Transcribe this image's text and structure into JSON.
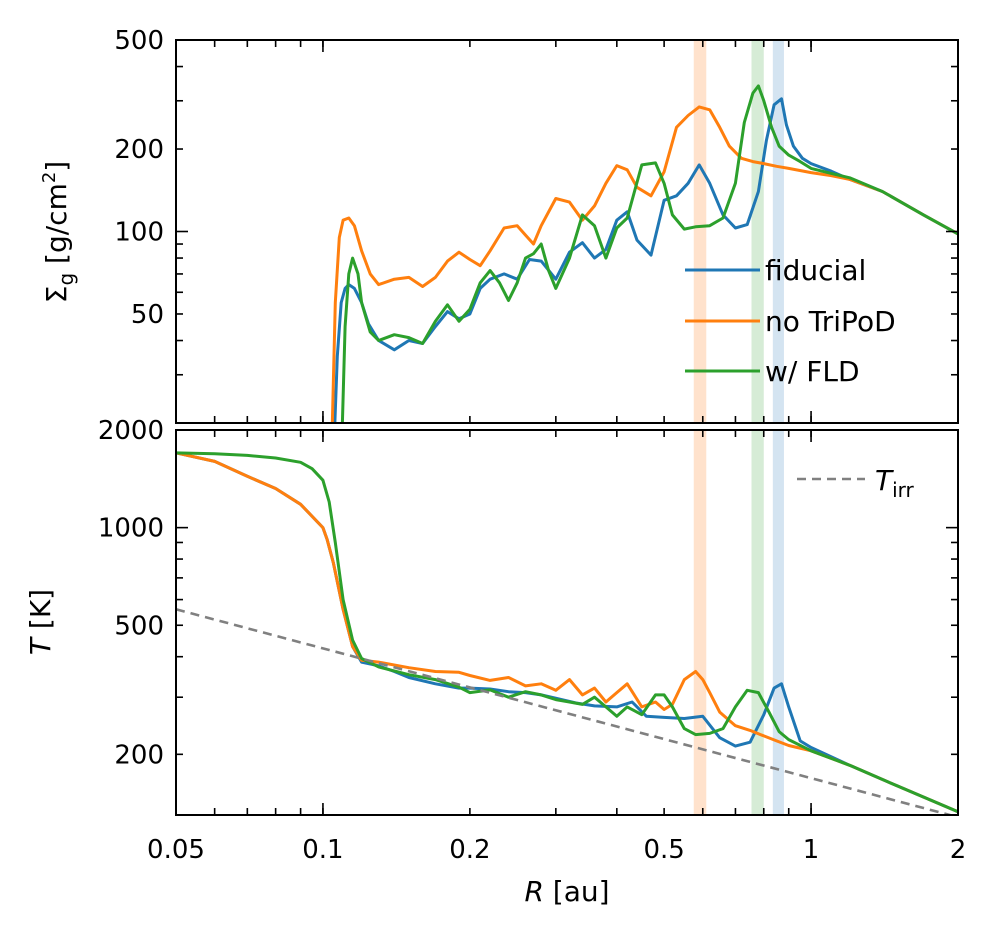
{
  "chart_data": [
    {
      "type": "line",
      "panel": "top",
      "ylabel": "Σg [g/cm2]",
      "ylabel_parts": {
        "symbol": "Σ",
        "sub": "g",
        "unit_pre": " [g/cm",
        "sup": "2",
        "unit_post": "]"
      },
      "xscale": "log",
      "yscale": "log",
      "xlim": [
        0.05,
        2
      ],
      "ylim": [
        20,
        500
      ],
      "yticks": [
        {
          "v": 50,
          "label": "50"
        },
        {
          "v": 100,
          "label": "100"
        },
        {
          "v": 200,
          "label": "200"
        },
        {
          "v": 500,
          "label": "500"
        }
      ],
      "bands": [
        {
          "x0": 0.575,
          "x1": 0.61,
          "color": "#ffe2cc"
        },
        {
          "x0": 0.755,
          "x1": 0.8,
          "color": "#d6ecd6"
        },
        {
          "x0": 0.835,
          "x1": 0.88,
          "color": "#d4e4f1"
        }
      ],
      "series": [
        {
          "name": "fiducial",
          "color": "#1f77b4",
          "x": [
            0.105,
            0.107,
            0.109,
            0.111,
            0.113,
            0.116,
            0.12,
            0.124,
            0.13,
            0.14,
            0.15,
            0.16,
            0.17,
            0.18,
            0.19,
            0.2,
            0.21,
            0.22,
            0.235,
            0.25,
            0.265,
            0.28,
            0.3,
            0.32,
            0.34,
            0.36,
            0.38,
            0.4,
            0.42,
            0.44,
            0.47,
            0.5,
            0.53,
            0.56,
            0.59,
            0.62,
            0.66,
            0.7,
            0.74,
            0.78,
            0.81,
            0.84,
            0.87,
            0.89,
            0.92,
            0.96,
            1.0,
            1.1,
            1.2,
            1.4,
            1.7,
            2.0
          ],
          "y": [
            14,
            35,
            55,
            62,
            64,
            62,
            55,
            46,
            40,
            37,
            40,
            39,
            45,
            51,
            48,
            50,
            62,
            67,
            70,
            67,
            79,
            78,
            67,
            84,
            91,
            80,
            86,
            110,
            118,
            93,
            82,
            130,
            135,
            150,
            175,
            150,
            115,
            103,
            106,
            140,
            215,
            290,
            305,
            245,
            205,
            185,
            177,
            166,
            155,
            140,
            115,
            98
          ]
        },
        {
          "name": "no TriPoD",
          "color": "#ff7f0e",
          "x": [
            0.104,
            0.106,
            0.108,
            0.11,
            0.113,
            0.116,
            0.12,
            0.125,
            0.13,
            0.14,
            0.15,
            0.16,
            0.17,
            0.18,
            0.19,
            0.2,
            0.21,
            0.22,
            0.235,
            0.25,
            0.26,
            0.27,
            0.28,
            0.3,
            0.32,
            0.34,
            0.36,
            0.38,
            0.4,
            0.42,
            0.44,
            0.47,
            0.5,
            0.53,
            0.56,
            0.59,
            0.62,
            0.65,
            0.68,
            0.72,
            0.76,
            0.8,
            0.85,
            0.9,
            1.0,
            1.1,
            1.2,
            1.4,
            1.7,
            2.0
          ],
          "y": [
            14,
            55,
            95,
            110,
            112,
            105,
            85,
            70,
            64,
            67,
            68,
            63,
            68,
            78,
            84,
            79,
            75,
            85,
            103,
            105,
            97,
            90,
            105,
            132,
            128,
            110,
            124,
            150,
            174,
            168,
            145,
            135,
            165,
            240,
            265,
            285,
            278,
            240,
            205,
            185,
            180,
            177,
            173,
            170,
            164,
            160,
            155,
            140,
            115,
            98
          ]
        },
        {
          "name": "w/ FLD",
          "color": "#2ca02c",
          "x": [
            0.109,
            0.111,
            0.113,
            0.115,
            0.118,
            0.12,
            0.125,
            0.13,
            0.14,
            0.15,
            0.16,
            0.17,
            0.18,
            0.19,
            0.2,
            0.21,
            0.22,
            0.23,
            0.24,
            0.25,
            0.26,
            0.27,
            0.28,
            0.29,
            0.3,
            0.32,
            0.34,
            0.36,
            0.38,
            0.4,
            0.42,
            0.45,
            0.48,
            0.5,
            0.52,
            0.55,
            0.58,
            0.62,
            0.66,
            0.7,
            0.73,
            0.76,
            0.78,
            0.8,
            0.83,
            0.86,
            0.9,
            0.95,
            1.0,
            1.1,
            1.2,
            1.4,
            1.7,
            2.0
          ],
          "y": [
            14,
            45,
            70,
            80,
            70,
            55,
            43,
            40,
            42,
            41,
            39,
            47,
            54,
            47,
            52,
            65,
            72,
            65,
            56,
            65,
            80,
            83,
            90,
            72,
            62,
            80,
            115,
            105,
            80,
            103,
            112,
            175,
            178,
            150,
            115,
            102,
            104,
            105,
            112,
            150,
            250,
            320,
            340,
            300,
            240,
            205,
            190,
            180,
            170,
            163,
            157,
            140,
            115,
            98
          ]
        }
      ],
      "legend": {
        "placement": "lower-right",
        "entries": [
          "fiducial",
          "no TriPoD",
          "w/ FLD"
        ]
      }
    },
    {
      "type": "line",
      "panel": "bottom",
      "ylabel": "T [K]",
      "ylabel_parts": {
        "symbol": "T",
        "unit": " [K]"
      },
      "xlabel": "R [au]",
      "xlabel_parts": {
        "symbol": "R",
        "unit": " [au]"
      },
      "xscale": "log",
      "yscale": "log",
      "xlim": [
        0.05,
        2
      ],
      "ylim": [
        130,
        2000
      ],
      "xticks": [
        {
          "v": 0.05,
          "label": "0.05"
        },
        {
          "v": 0.1,
          "label": "0.1"
        },
        {
          "v": 0.2,
          "label": "0.2"
        },
        {
          "v": 0.5,
          "label": "0.5"
        },
        {
          "v": 1,
          "label": "1"
        },
        {
          "v": 2,
          "label": "2"
        }
      ],
      "yticks": [
        {
          "v": 200,
          "label": "200"
        },
        {
          "v": 500,
          "label": "500"
        },
        {
          "v": 1000,
          "label": "1000"
        },
        {
          "v": 2000,
          "label": "2000"
        }
      ],
      "bands": [
        {
          "x0": 0.575,
          "x1": 0.61,
          "color": "#ffe2cc"
        },
        {
          "x0": 0.755,
          "x1": 0.8,
          "color": "#d6ecd6"
        },
        {
          "x0": 0.835,
          "x1": 0.88,
          "color": "#d4e4f1"
        }
      ],
      "series": [
        {
          "name": "fiducial",
          "color": "#1f77b4",
          "x": [
            0.05,
            0.06,
            0.07,
            0.08,
            0.09,
            0.1,
            0.102,
            0.105,
            0.11,
            0.115,
            0.12,
            0.13,
            0.14,
            0.15,
            0.17,
            0.19,
            0.2,
            0.22,
            0.24,
            0.26,
            0.28,
            0.3,
            0.33,
            0.36,
            0.4,
            0.43,
            0.46,
            0.5,
            0.55,
            0.6,
            0.65,
            0.7,
            0.75,
            0.8,
            0.84,
            0.87,
            0.9,
            0.95,
            1.0,
            1.2,
            1.5,
            2.0
          ],
          "y": [
            1700,
            1600,
            1440,
            1320,
            1180,
            1000,
            920,
            780,
            560,
            430,
            385,
            375,
            360,
            345,
            330,
            320,
            320,
            318,
            312,
            310,
            305,
            298,
            288,
            282,
            280,
            290,
            262,
            260,
            258,
            262,
            225,
            212,
            218,
            265,
            320,
            330,
            280,
            220,
            210,
            185,
            160,
            133
          ]
        },
        {
          "name": "no TriPoD",
          "color": "#ff7f0e",
          "x": [
            0.05,
            0.06,
            0.07,
            0.08,
            0.09,
            0.1,
            0.102,
            0.105,
            0.11,
            0.115,
            0.12,
            0.13,
            0.15,
            0.17,
            0.19,
            0.2,
            0.22,
            0.24,
            0.26,
            0.28,
            0.3,
            0.32,
            0.34,
            0.36,
            0.38,
            0.4,
            0.42,
            0.45,
            0.48,
            0.5,
            0.52,
            0.55,
            0.58,
            0.6,
            0.62,
            0.65,
            0.7,
            0.75,
            0.8,
            0.85,
            0.9,
            1.0,
            1.2,
            1.5,
            2.0
          ],
          "y": [
            1700,
            1600,
            1440,
            1320,
            1180,
            1000,
            920,
            780,
            560,
            430,
            390,
            385,
            370,
            360,
            358,
            350,
            338,
            345,
            325,
            330,
            315,
            340,
            305,
            320,
            290,
            310,
            330,
            280,
            290,
            275,
            285,
            340,
            360,
            340,
            310,
            270,
            245,
            237,
            228,
            220,
            213,
            205,
            185,
            160,
            133
          ]
        },
        {
          "name": "w/ FLD",
          "color": "#2ca02c",
          "x": [
            0.05,
            0.06,
            0.07,
            0.08,
            0.09,
            0.095,
            0.1,
            0.103,
            0.106,
            0.11,
            0.115,
            0.12,
            0.13,
            0.15,
            0.17,
            0.19,
            0.2,
            0.22,
            0.24,
            0.26,
            0.28,
            0.3,
            0.32,
            0.34,
            0.36,
            0.38,
            0.4,
            0.42,
            0.45,
            0.48,
            0.5,
            0.52,
            0.55,
            0.58,
            0.62,
            0.66,
            0.7,
            0.74,
            0.78,
            0.82,
            0.86,
            0.9,
            1.0,
            1.2,
            1.5,
            2.0
          ],
          "y": [
            1700,
            1690,
            1670,
            1640,
            1590,
            1520,
            1400,
            1200,
            900,
            600,
            450,
            395,
            372,
            352,
            340,
            322,
            310,
            316,
            300,
            312,
            305,
            295,
            290,
            285,
            300,
            280,
            262,
            280,
            265,
            305,
            305,
            280,
            240,
            230,
            232,
            240,
            280,
            315,
            310,
            270,
            235,
            222,
            205,
            185,
            160,
            133
          ]
        },
        {
          "name": "Tirr",
          "color": "#808080",
          "dashed": true,
          "x": [
            0.05,
            2.0
          ],
          "y": [
            560,
            128
          ]
        }
      ],
      "legend": {
        "placement": "top-right",
        "entries": [
          "Tirr"
        ],
        "label_parts": {
          "symbol": "T",
          "sub": "irr"
        }
      }
    }
  ]
}
